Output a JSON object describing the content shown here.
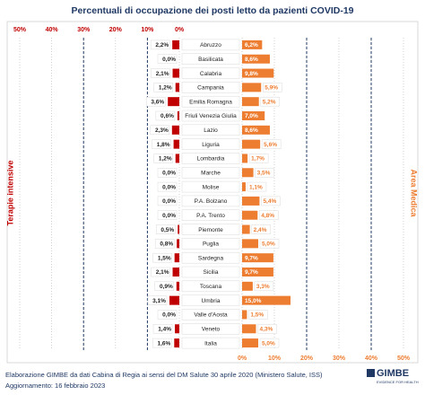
{
  "chart_data": {
    "type": "butterfly-bar",
    "title": "Percentuali di occupazione dei posti letto da pazienti COVID-19",
    "categories": [
      "Abruzzo",
      "Basilicata",
      "Calabria",
      "Campania",
      "Emilia Romagna",
      "Friuli Venezia Giulia",
      "Lazio",
      "Liguria",
      "Lombardia",
      "Marche",
      "Molise",
      "P.A. Bolzano",
      "P.A. Trento",
      "Piemonte",
      "Puglia",
      "Sardegna",
      "Sicilia",
      "Toscana",
      "Umbria",
      "Valle d'Aosta",
      "Veneto",
      "Italia"
    ],
    "series": [
      {
        "name": "Terapie intensive",
        "color": "#c00000",
        "side": "left",
        "values": [
          2.2,
          0.0,
          2.1,
          1.2,
          3.6,
          0.6,
          2.3,
          1.8,
          1.2,
          0.0,
          0.0,
          0.0,
          0.0,
          0.5,
          0.8,
          1.5,
          2.1,
          0.9,
          3.1,
          0.0,
          1.4,
          1.6
        ],
        "value_labels": [
          "2,2%",
          "0,0%",
          "2,1%",
          "1,2%",
          "3,6%",
          "0,6%",
          "2,3%",
          "1,8%",
          "1,2%",
          "0,0%",
          "0,0%",
          "0,0%",
          "0,0%",
          "0,5%",
          "0,8%",
          "1,5%",
          "2,1%",
          "0,9%",
          "3,1%",
          "0,0%",
          "1,4%",
          "1,6%"
        ],
        "thresholds": [
          10,
          30
        ]
      },
      {
        "name": "Area Medica",
        "color": "#ed7d31",
        "side": "right",
        "values": [
          6.2,
          8.6,
          9.8,
          5.9,
          5.2,
          7.0,
          8.6,
          5.6,
          1.7,
          3.5,
          1.1,
          5.4,
          4.8,
          2.4,
          5.0,
          9.7,
          9.7,
          3.3,
          15.0,
          1.5,
          4.3,
          5.0
        ],
        "value_labels": [
          "6,2%",
          "8,6%",
          "9,8%",
          "5,9%",
          "5,2%",
          "7,0%",
          "8,6%",
          "5,6%",
          "1,7%",
          "3,5%",
          "1,1%",
          "5,4%",
          "4,8%",
          "2,4%",
          "5,0%",
          "9,7%",
          "9,7%",
          "3,3%",
          "15,0%",
          "1,5%",
          "4,3%",
          "5,0%"
        ],
        "thresholds": [
          20,
          40
        ]
      }
    ],
    "xlim": [
      0,
      50
    ],
    "xticks": [
      {
        "value": 0,
        "label": "0%"
      },
      {
        "value": 10,
        "label": "10%"
      },
      {
        "value": 20,
        "label": "20%"
      },
      {
        "value": 30,
        "label": "30%"
      },
      {
        "value": 40,
        "label": "40%"
      },
      {
        "value": 50,
        "label": "50%"
      }
    ],
    "grid": true,
    "source": "Elaborazione GIMBE da dati Cabina di Regia ai sensi del DM Salute 30 aprile 2020 (Ministero Salute, ISS)",
    "updated": "Aggiornamento: 16 febbraio 2023",
    "logo": "GIMBE",
    "logo_tagline": "EVIDENCE FOR HEALTH"
  }
}
